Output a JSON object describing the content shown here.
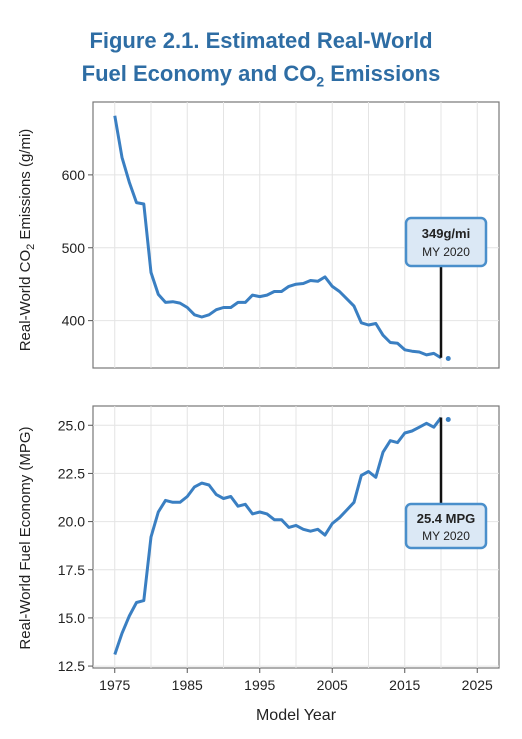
{
  "figure": {
    "title_line1": "Figure 2.1. Estimated Real-World",
    "title_line2_pre": "Fuel Economy and CO",
    "title_line2_sub": "2",
    "title_line2_post": " Emissions"
  },
  "colors": {
    "line": "#3a7fc2",
    "title": "#2e6da4",
    "callout_fill": "#dbe8f5",
    "callout_border": "#4a8fcb"
  },
  "chart_data": [
    {
      "type": "line",
      "ylabel_pre": "Real-World CO",
      "ylabel_sub": "2",
      "ylabel_post": " Emissions (g/mi)",
      "xlim": [
        1972,
        2028
      ],
      "ylim": [
        335,
        700
      ],
      "yticks": [
        400,
        500,
        600
      ],
      "grid": true,
      "callout": {
        "value": "349g/mi",
        "label": "MY 2020",
        "year": 2020,
        "y": 349
      },
      "x": [
        1975,
        1976,
        1977,
        1978,
        1979,
        1980,
        1981,
        1982,
        1983,
        1984,
        1985,
        1986,
        1987,
        1988,
        1989,
        1990,
        1991,
        1992,
        1993,
        1994,
        1995,
        1996,
        1997,
        1998,
        1999,
        2000,
        2001,
        2002,
        2003,
        2004,
        2005,
        2006,
        2007,
        2008,
        2009,
        2010,
        2011,
        2012,
        2013,
        2014,
        2015,
        2016,
        2017,
        2018,
        2019,
        2020
      ],
      "y": [
        681,
        624,
        590,
        562,
        560,
        466,
        436,
        425,
        426,
        424,
        418,
        408,
        405,
        408,
        415,
        418,
        418,
        425,
        425,
        435,
        433,
        435,
        440,
        440,
        447,
        450,
        451,
        455,
        454,
        460,
        447,
        440,
        430,
        420,
        397,
        394,
        396,
        380,
        370,
        369,
        360,
        358,
        357,
        353,
        355,
        349
      ],
      "preliminary": {
        "x": 2021,
        "y": 348
      }
    },
    {
      "type": "line",
      "ylabel": "Real-World Fuel Economy (MPG)",
      "xlabel": "Model Year",
      "xlim": [
        1972,
        2028
      ],
      "ylim": [
        12.4,
        26.0
      ],
      "yticks": [
        "12.5",
        "15.0",
        "17.5",
        "20.0",
        "22.5",
        "25.0"
      ],
      "xticks": [
        "1975",
        "1985",
        "1995",
        "2005",
        "2015",
        "2025"
      ],
      "grid": true,
      "callout": {
        "value": "25.4 MPG",
        "label": "MY 2020",
        "year": 2020,
        "y": 25.4
      },
      "x": [
        1975,
        1976,
        1977,
        1978,
        1979,
        1980,
        1981,
        1982,
        1983,
        1984,
        1985,
        1986,
        1987,
        1988,
        1989,
        1990,
        1991,
        1992,
        1993,
        1994,
        1995,
        1996,
        1997,
        1998,
        1999,
        2000,
        2001,
        2002,
        2003,
        2004,
        2005,
        2006,
        2007,
        2008,
        2009,
        2010,
        2011,
        2012,
        2013,
        2014,
        2015,
        2016,
        2017,
        2018,
        2019,
        2020
      ],
      "y": [
        13.1,
        14.2,
        15.1,
        15.8,
        15.9,
        19.2,
        20.5,
        21.1,
        21.0,
        21.0,
        21.3,
        21.8,
        22.0,
        21.9,
        21.4,
        21.2,
        21.3,
        20.8,
        20.9,
        20.4,
        20.5,
        20.4,
        20.1,
        20.1,
        19.7,
        19.8,
        19.6,
        19.5,
        19.6,
        19.3,
        19.9,
        20.2,
        20.6,
        21.0,
        22.4,
        22.6,
        22.3,
        23.6,
        24.2,
        24.1,
        24.6,
        24.7,
        24.9,
        25.1,
        24.9,
        25.4
      ],
      "preliminary": {
        "x": 2021,
        "y": 25.3
      }
    }
  ]
}
